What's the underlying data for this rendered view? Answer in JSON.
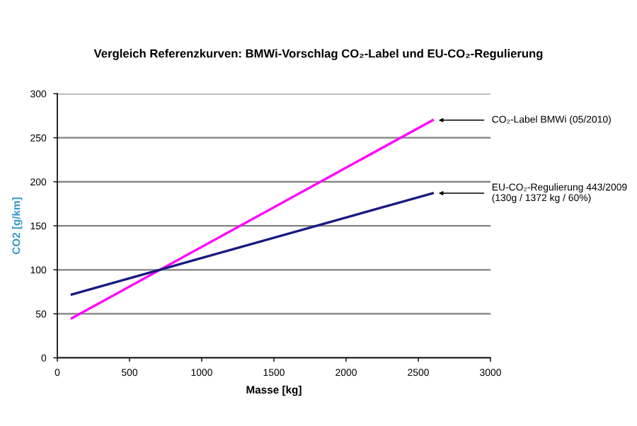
{
  "chart_data": {
    "type": "line",
    "title": "Vergleich Referenzkurven: BMWi-Vorschlag CO₂-Label und EU-CO₂-Regulierung",
    "xlabel": "Masse [kg]",
    "ylabel": "CO2 [g/km]",
    "x": [
      100,
      2600
    ],
    "series": [
      {
        "color": "#ff00ff",
        "values": [
          45,
          270
        ]
      },
      {
        "color": "#1a1a80",
        "values": [
          72,
          187
        ]
      }
    ],
    "xlim": [
      0,
      3000
    ],
    "xticks": [
      0,
      500,
      1000,
      1500,
      2000,
      2500,
      3000
    ],
    "ylim": [
      0,
      300
    ],
    "yticks": [
      0,
      50,
      100,
      150,
      200,
      250,
      300
    ],
    "grid": "y",
    "legend": false,
    "marker": "none",
    "line_style": "solid",
    "annotations": [
      {
        "text": "CO₂-Label BMWi (05/2010)",
        "x": 2600,
        "y": 270
      },
      {
        "text": "EU-CO₂-Regulierung 443/2009\n(130g / 1372 kg / 60%)",
        "x": 2600,
        "y": 187
      }
    ]
  }
}
